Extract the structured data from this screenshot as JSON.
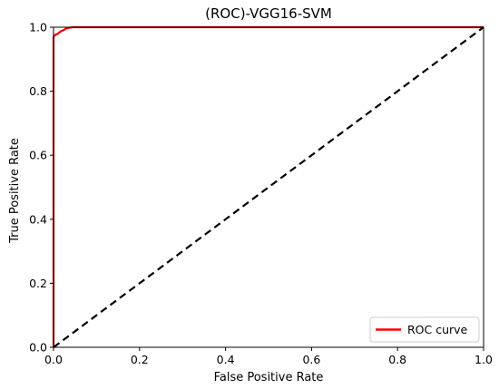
{
  "chart_data": {
    "type": "line",
    "title": "(ROC)-VGG16-SVM",
    "xlabel": "False Positive Rate",
    "ylabel": "True Positive Rate",
    "xlim": [
      0.0,
      1.0
    ],
    "ylim": [
      0.0,
      1.0
    ],
    "xticks": [
      "0.0",
      "0.2",
      "0.4",
      "0.6",
      "0.8",
      "1.0"
    ],
    "yticks": [
      "0.0",
      "0.2",
      "0.4",
      "0.6",
      "0.8",
      "1.0"
    ],
    "grid": false,
    "legend_position": "lower-right",
    "series": [
      {
        "name": "ROC curve",
        "color": "#ff0000",
        "style": "solid",
        "x": [
          0.0,
          0.0,
          0.002,
          0.004,
          0.006,
          0.008,
          0.012,
          0.015,
          0.018,
          0.022,
          0.028,
          0.035,
          0.045,
          0.05,
          1.0
        ],
        "y": [
          0.0,
          0.97,
          0.975,
          0.975,
          0.978,
          0.978,
          0.982,
          0.985,
          0.988,
          0.99,
          0.995,
          0.998,
          1.0,
          1.0,
          1.0
        ]
      },
      {
        "name": "",
        "color": "#000000",
        "style": "dashed",
        "x": [
          0.0,
          1.0
        ],
        "y": [
          0.0,
          1.0
        ]
      }
    ]
  }
}
